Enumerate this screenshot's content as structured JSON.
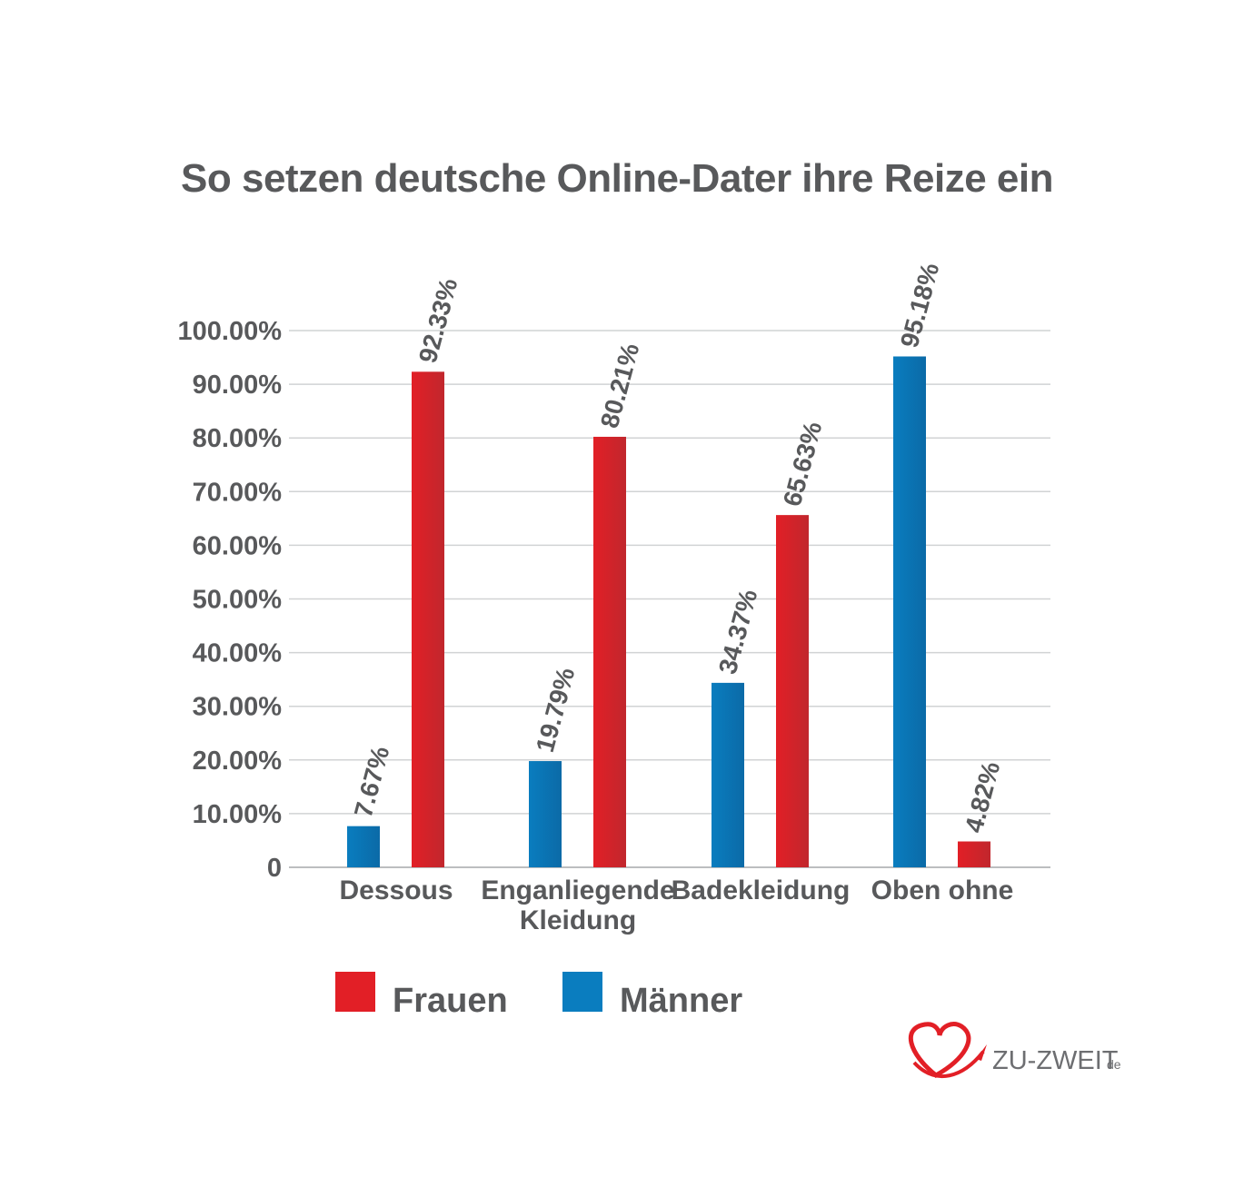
{
  "chart_data": {
    "type": "bar",
    "title": "So setzen deutsche Online-Dater ihre Reize ein",
    "categories": [
      [
        "Dessous"
      ],
      [
        "Enganliegende",
        "Kleidung"
      ],
      [
        "Badekleidung"
      ],
      [
        "Oben ohne"
      ]
    ],
    "series": [
      {
        "name": "Männer",
        "color": "#0a7dbf",
        "values": [
          7.67,
          19.79,
          34.37,
          95.18
        ],
        "labels": [
          "7.67%",
          "19.79%",
          "34.37%",
          "95.18%"
        ]
      },
      {
        "name": "Frauen",
        "color": "#e21f26",
        "values": [
          92.33,
          80.21,
          65.63,
          4.82
        ],
        "labels": [
          "92.33%",
          "80.21%",
          "65.63%",
          "4.82%"
        ]
      }
    ],
    "y_ticks": [
      "0",
      "10.00%",
      "20.00%",
      "30.00%",
      "40.00%",
      "50.00%",
      "60.00%",
      "70.00%",
      "80.00%",
      "90.00%",
      "100.00%"
    ],
    "ylim": [
      0,
      100
    ],
    "grid": true,
    "legend": {
      "position": "bottom",
      "items": [
        {
          "label": "Frauen",
          "color": "#e21f26"
        },
        {
          "label": "Männer",
          "color": "#0a7dbf"
        }
      ]
    }
  },
  "logo": {
    "text": "ZU-ZWEIT",
    "suffix": "de",
    "color": "#e21f26"
  }
}
